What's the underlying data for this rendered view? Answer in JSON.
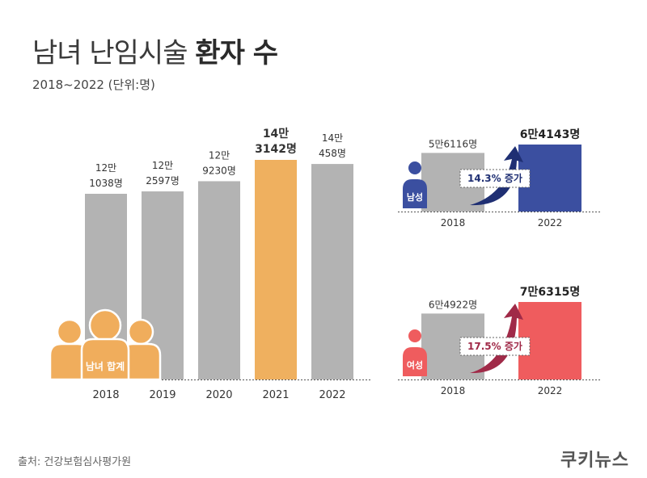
{
  "title": {
    "light": "남녀 난임시술 ",
    "bold": "환자 수"
  },
  "subtitle": "2018~2022 (단위:명)",
  "source": "출처: 건강보험심사평가원",
  "brand": "쿠키뉴스",
  "colors": {
    "gray": "#b3b3b3",
    "highlight": "#efb05f",
    "male": "#3b4fa0",
    "female": "#ef5c5e",
    "people": "#f0ad5c",
    "axis": "#555555",
    "arrow_male": "#1f2f73",
    "arrow_female": "#a02a48"
  },
  "chart_data": [
    {
      "type": "bar",
      "title": "남녀 난임시술 환자 수",
      "icon_label": "남녀 합계",
      "categories": [
        "2018",
        "2019",
        "2020",
        "2021",
        "2022"
      ],
      "values": [
        121038,
        122597,
        129230,
        143142,
        140458
      ],
      "value_labels": [
        [
          "12만",
          "1038명"
        ],
        [
          "12만",
          "2597명"
        ],
        [
          "12만",
          "9230명"
        ],
        [
          "14만",
          "3142명"
        ],
        [
          "14만",
          "458명"
        ]
      ],
      "highlight_index": 3,
      "ylim": [
        0,
        150000
      ]
    },
    {
      "type": "bar",
      "group": "남성",
      "categories": [
        "2018",
        "2022"
      ],
      "values": [
        56116,
        64143
      ],
      "value_labels": [
        "5만6116명",
        "6만4143명"
      ],
      "change_label": "14.3% 증가",
      "ylim": [
        0,
        90000
      ]
    },
    {
      "type": "bar",
      "group": "여성",
      "categories": [
        "2018",
        "2022"
      ],
      "values": [
        64922,
        76315
      ],
      "value_labels": [
        "6만4922명",
        "7만6315명"
      ],
      "change_label": "17.5% 증가",
      "ylim": [
        0,
        90000
      ]
    }
  ]
}
